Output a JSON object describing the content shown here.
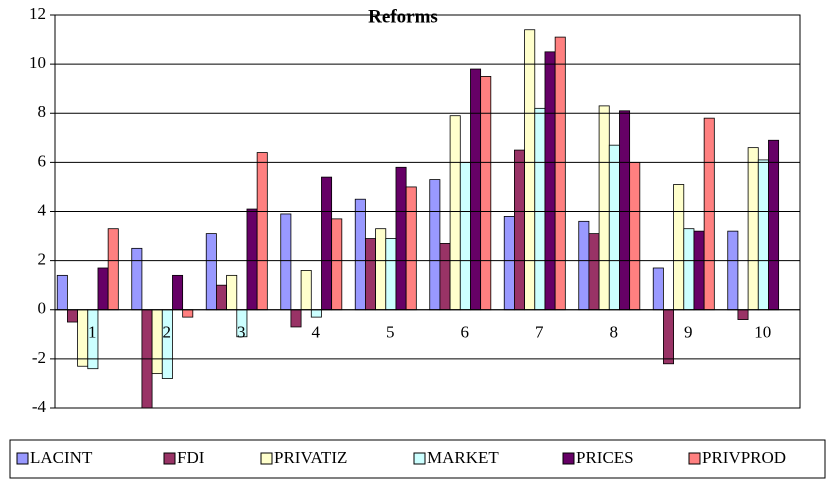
{
  "chart_data": {
    "type": "bar",
    "title": "Reforms",
    "categories": [
      "1",
      "2",
      "3",
      "4",
      "5",
      "6",
      "7",
      "8",
      "9",
      "10"
    ],
    "series": [
      {
        "name": "LACINT",
        "color": "#9999ff",
        "values": [
          1.4,
          2.5,
          3.1,
          3.9,
          4.5,
          5.3,
          3.8,
          3.6,
          1.7,
          3.2
        ]
      },
      {
        "name": "FDI",
        "color": "#993366",
        "values": [
          -0.5,
          -4.3,
          1.0,
          -0.7,
          2.9,
          2.7,
          6.5,
          3.1,
          -2.2,
          -0.4
        ]
      },
      {
        "name": "PRIVATIZ",
        "color": "#ffffcc",
        "values": [
          -2.3,
          -2.6,
          1.4,
          1.6,
          3.3,
          7.9,
          11.4,
          8.3,
          5.1,
          6.6
        ]
      },
      {
        "name": "MARKET",
        "color": "#ccffff",
        "values": [
          -2.4,
          -2.8,
          -1.1,
          -0.3,
          2.9,
          6.0,
          8.2,
          6.7,
          3.3,
          6.1
        ]
      },
      {
        "name": "PRICES",
        "color": "#660066",
        "values": [
          1.7,
          1.4,
          4.1,
          5.4,
          5.8,
          9.8,
          10.5,
          8.1,
          3.2,
          6.9
        ]
      },
      {
        "name": "PRIVPROD",
        "color": "#ff8080",
        "values": [
          3.3,
          -0.3,
          6.4,
          3.7,
          5.0,
          9.5,
          11.1,
          6.0,
          7.8,
          0
        ]
      }
    ],
    "ylim": [
      -4,
      12
    ],
    "yticks": [
      -4,
      -2,
      0,
      2,
      4,
      6,
      8,
      10,
      12
    ],
    "grid": true,
    "legend": "bottom"
  }
}
